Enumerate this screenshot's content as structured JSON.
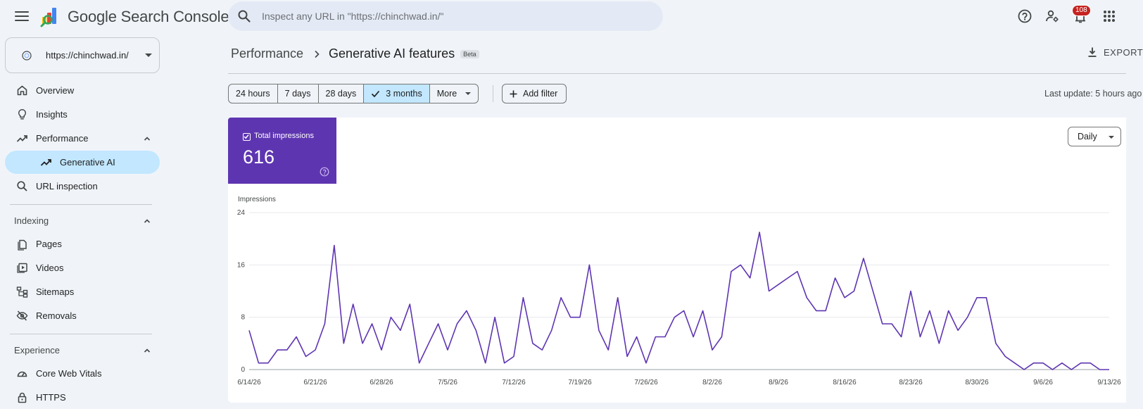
{
  "app": {
    "title": "Google Search Console",
    "search_placeholder": "Inspect any URL in \"https://chinchwad.in/\"",
    "notification_count": "108"
  },
  "property": {
    "label": "https://chinchwad.in/"
  },
  "sidebar": {
    "items": [
      {
        "label": "Overview",
        "icon": "home-icon"
      },
      {
        "label": "Insights",
        "icon": "lightbulb-icon"
      },
      {
        "label": "Performance",
        "icon": "trending-up-icon"
      },
      {
        "label": "Generative AI",
        "icon": "trending-up-icon"
      },
      {
        "label": "URL inspection",
        "icon": "search-icon"
      }
    ],
    "indexing": {
      "title": "Indexing",
      "items": [
        {
          "label": "Pages",
          "icon": "pages-icon"
        },
        {
          "label": "Videos",
          "icon": "video-icon"
        },
        {
          "label": "Sitemaps",
          "icon": "sitemap-icon"
        },
        {
          "label": "Removals",
          "icon": "eye-off-icon"
        }
      ]
    },
    "experience": {
      "title": "Experience",
      "items": [
        {
          "label": "Core Web Vitals",
          "icon": "gauge-icon"
        },
        {
          "label": "HTTPS",
          "icon": "lock-icon"
        }
      ]
    }
  },
  "header": {
    "breadcrumb_parent": "Performance",
    "breadcrumb_current": "Generative AI features",
    "badge": "Beta",
    "export_label": "EXPORT"
  },
  "filters": {
    "ranges": [
      "24 hours",
      "7 days",
      "28 days",
      "3 months"
    ],
    "selected_range": "3 months",
    "more_label": "More",
    "add_filter_label": "Add filter",
    "last_update": "Last update: 5 hours ago"
  },
  "metric": {
    "label": "Total impressions",
    "value": "616",
    "color": "#5e35b1"
  },
  "granularity": {
    "selected": "Daily"
  },
  "chart_data": {
    "type": "line",
    "ylabel": "Impressions",
    "ylim": [
      0,
      24
    ],
    "yticks": [
      0,
      8,
      16,
      24
    ],
    "xticks": [
      "6/14/26",
      "6/21/26",
      "6/28/26",
      "7/5/26",
      "7/12/26",
      "7/19/26",
      "7/26/26",
      "8/2/26",
      "8/9/26",
      "8/16/26",
      "8/23/26",
      "8/30/26",
      "9/6/26",
      "9/13/26"
    ],
    "line_color": "#5e35b1",
    "grid": true,
    "series": [
      {
        "values": [
          6,
          1,
          1,
          3,
          3,
          5,
          2,
          3,
          7,
          19,
          4,
          10,
          4,
          7,
          3,
          8,
          6,
          10,
          1,
          4,
          7,
          3,
          7,
          9,
          6,
          1,
          8,
          1,
          2,
          11,
          4,
          3,
          6,
          11,
          8,
          8,
          16,
          6,
          3,
          11,
          2,
          5,
          1,
          5,
          5,
          8,
          9,
          5,
          9,
          3,
          5,
          15,
          16,
          14,
          21,
          12,
          13,
          14,
          15,
          11,
          9,
          9,
          14,
          11,
          12,
          17,
          12,
          7,
          7,
          5,
          12,
          5,
          9,
          4,
          9,
          6,
          8,
          11,
          11,
          4,
          2,
          1,
          0,
          1,
          1,
          0,
          1,
          0,
          1,
          1,
          0,
          0
        ]
      }
    ]
  }
}
